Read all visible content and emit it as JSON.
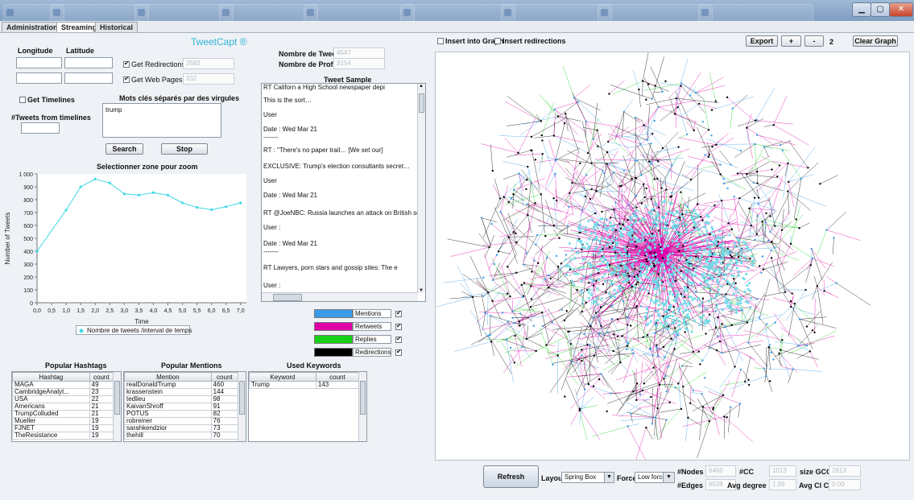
{
  "app": {
    "title": "TweetCapt ®"
  },
  "app_tabs": [
    "Administration",
    "Streaming",
    "Historical"
  ],
  "location": {
    "longitude_label": "Longitude",
    "latitude_label": "Latitude"
  },
  "options": {
    "get_redirections": {
      "label": "Get Redirections",
      "count": "3583",
      "checked": true
    },
    "get_web_pages": {
      "label": "Get Web Pages",
      "count": "332",
      "checked": true
    },
    "get_timelines": {
      "label": "Get Timelines",
      "checked": false
    },
    "tweets_from_timelines_label": "#Tweets from timelines"
  },
  "keywords": {
    "label": "Mots clés séparés par des virgules",
    "value": "trump"
  },
  "actions": {
    "search": "Search",
    "stop": "Stop"
  },
  "counters": {
    "tweets_label": "Nombre de Tweets",
    "tweets_value": "4547",
    "profiles_label": "Nombre de Profiles",
    "profiles_value": "3154"
  },
  "tweet_sample": {
    "title": "Tweet Sample",
    "lines": [
      "RT                    Californ a High School newspaper depi",
      "This is the sort…",
      "User",
      "Date : Wed Mar 21",
      "-------",
      "RT                            : \"There's no paper trail… [We set our]",
      "EXCLUSIVE: Trump's election consultants secret…",
      "User",
      "Date : Wed Mar 21",
      "RT @JoeNBC: Russia launches an attack on British soil. Na",
      "User :",
      "Date : Wed Mar 21",
      "-------",
      "RT                  Lawyers, porn stars and gossip sites: The e",
      "User :"
    ]
  },
  "chart_data": {
    "type": "line",
    "title": "Selectionner zone pour zoom",
    "xlabel": "Time",
    "ylabel": "Number of Tweets",
    "x": [
      0.0,
      1.0,
      1.5,
      2.0,
      2.5,
      3.0,
      3.5,
      4.0,
      4.5,
      5.0,
      5.5,
      6.0,
      6.5,
      7.0
    ],
    "series": [
      {
        "name": "Nombre de tweets /interval de temps",
        "values": [
          400,
          720,
          900,
          960,
          930,
          845,
          835,
          855,
          835,
          775,
          740,
          722,
          745,
          775
        ]
      }
    ],
    "xticks": [
      "0,0",
      "0,5",
      "1,0",
      "1,5",
      "2,0",
      "2,5",
      "3,0",
      "3,5",
      "4,0",
      "4,5",
      "5,0",
      "5,5",
      "6,0",
      "6,5",
      "7,0"
    ],
    "yticks": [
      "0",
      "100",
      "200",
      "300",
      "400",
      "500",
      "600",
      "700",
      "800",
      "900",
      "1 000"
    ],
    "xlim": [
      0,
      7.2
    ],
    "ylim": [
      0,
      1000
    ],
    "color": "#3fd8e8"
  },
  "legend_types": [
    {
      "label": "Mentions",
      "color": "#3a9be8",
      "checked": true
    },
    {
      "label": "Retweets",
      "color": "#e000a8",
      "checked": true
    },
    {
      "label": "Replies",
      "color": "#16d116",
      "checked": true
    },
    {
      "label": "Redirections",
      "color": "#000000",
      "checked": true
    }
  ],
  "hashtags": {
    "title": "Popular Hashtags",
    "headers": [
      "Hashtag",
      "count"
    ],
    "rows": [
      [
        "MAGA",
        "49"
      ],
      [
        "CambridgeAnalyt...",
        "23"
      ],
      [
        "USA",
        "22"
      ],
      [
        "Americans",
        "21"
      ],
      [
        "TrumpColluded",
        "21"
      ],
      [
        "Mueller",
        "19"
      ],
      [
        "FJNET",
        "19"
      ],
      [
        "TheResistance",
        "19"
      ]
    ]
  },
  "mentions": {
    "title": "Popular Mentions",
    "headers": [
      "Mention",
      "count"
    ],
    "rows": [
      [
        "realDonaldTrump",
        "460"
      ],
      [
        "krassenstein",
        "144"
      ],
      [
        "tedlieu",
        "98"
      ],
      [
        "KaivanShroff",
        "91"
      ],
      [
        "POTUS",
        "82"
      ],
      [
        "robreiner",
        "76"
      ],
      [
        "sarahkendzior",
        "73"
      ],
      [
        "thehill",
        "70"
      ]
    ]
  },
  "keywords_table": {
    "title": "Used Keywords",
    "headers": [
      "Keyword",
      "count"
    ],
    "rows": [
      [
        "Trump",
        "143"
      ]
    ]
  },
  "graph_toolbar": {
    "insert_into_graph": "Insert into Graph",
    "insert_redirections": "Insert redirections",
    "export": "Export",
    "plus": "+",
    "minus": "-",
    "zoom_value": "2",
    "clear": "Clear Graph"
  },
  "graph_bottom": {
    "refresh": "Refresh",
    "layout_label": "Layout",
    "layout_value": "Spring Box",
    "force_label": "Force",
    "force_value": "Low force",
    "nodes_label": "#Nodes",
    "nodes_value": "6460",
    "cc_label": "#CC",
    "cc_value": "1013",
    "gcc_label": "size GCC",
    "gcc_value": "2813",
    "edges_label": "#Edges",
    "edges_value": "6538",
    "avg_degree_label": "Avg degree",
    "avg_degree_value": "1.99",
    "avg_cl_label": "Avg Cl Coef",
    "avg_cl_value": "0.00"
  }
}
